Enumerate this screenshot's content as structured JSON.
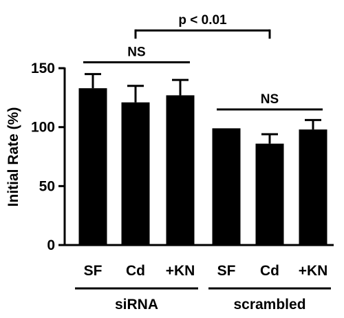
{
  "chart_data": {
    "type": "bar",
    "ylabel": "Initial Rate (%)",
    "ylim": [
      0,
      150
    ],
    "yticks": [
      0,
      50,
      100,
      150
    ],
    "categories": [
      "SF",
      "Cd",
      "+KN",
      "SF",
      "Cd",
      "+KN"
    ],
    "values": [
      133,
      121,
      127,
      99,
      86,
      98
    ],
    "errors": [
      12,
      14,
      13,
      0,
      8,
      8
    ],
    "bar_color": "#000000",
    "groups": [
      {
        "label": "siRNA",
        "start": 0,
        "end": 2
      },
      {
        "label": "scrambled",
        "start": 3,
        "end": 5
      }
    ],
    "annotations": [
      {
        "type": "line",
        "label": "NS",
        "from": 0,
        "to": 2,
        "y": 155
      },
      {
        "type": "line",
        "label": "NS",
        "from": 3,
        "to": 5,
        "y": 115
      },
      {
        "type": "bracket",
        "label": "p < 0.01",
        "from": 1,
        "to": 4,
        "y": 182,
        "drop": 7
      }
    ]
  }
}
